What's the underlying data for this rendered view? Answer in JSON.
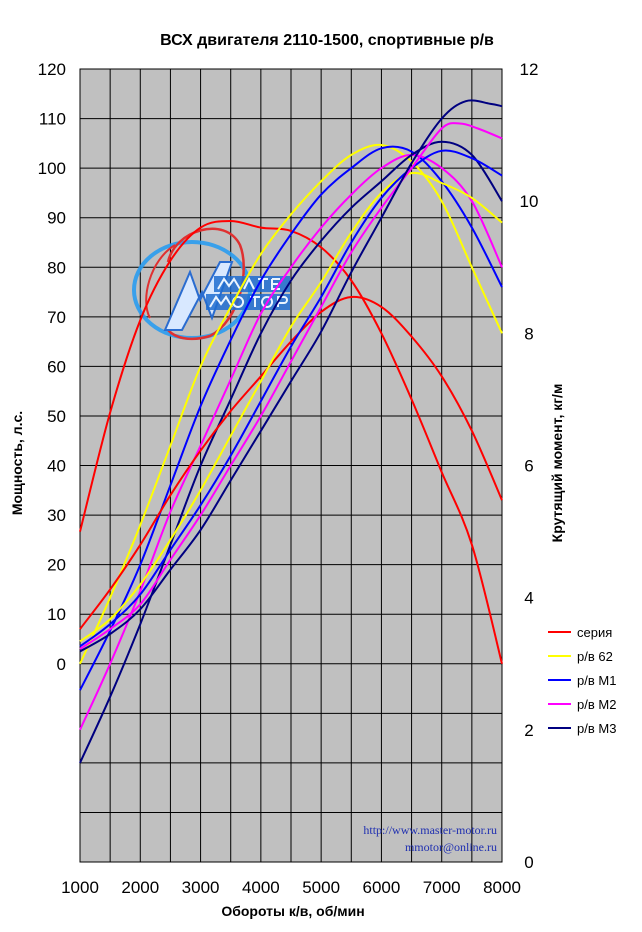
{
  "chart_data": {
    "type": "line",
    "title": "ВСХ двигателя 2110-1500, спортивные р/в",
    "xlabel": "Обороты к/в, об/мин",
    "ylabel_left": "Мощность, л.с.",
    "ylabel_right": "Крутящий момент, кг/м",
    "xlim": [
      1000,
      8000
    ],
    "ylim_left": [
      -40,
      120
    ],
    "ylim_right": [
      0,
      12
    ],
    "x_ticks": [
      1000,
      2000,
      3000,
      4000,
      5000,
      6000,
      7000,
      8000
    ],
    "y_ticks_left": [
      0,
      10,
      20,
      30,
      40,
      50,
      60,
      70,
      80,
      90,
      100,
      110,
      120
    ],
    "y_ticks_right": [
      0,
      2,
      4,
      6,
      8,
      10,
      12
    ],
    "grid": true,
    "legend_position": "right",
    "series": [
      {
        "name": "серия",
        "color": "#ff0000",
        "power": [
          [
            1000,
            7
          ],
          [
            1500,
            15
          ],
          [
            2000,
            24
          ],
          [
            2500,
            34
          ],
          [
            3000,
            43
          ],
          [
            3500,
            51
          ],
          [
            4000,
            58
          ],
          [
            4500,
            65
          ],
          [
            5000,
            71
          ],
          [
            5500,
            74
          ],
          [
            6000,
            72
          ],
          [
            6500,
            66
          ],
          [
            7000,
            58
          ],
          [
            7500,
            47
          ],
          [
            8000,
            33
          ]
        ],
        "torque": [
          [
            1000,
            5.0
          ],
          [
            1500,
            6.8
          ],
          [
            2000,
            8.2
          ],
          [
            2500,
            9.1
          ],
          [
            3000,
            9.6
          ],
          [
            3500,
            9.7
          ],
          [
            4000,
            9.6
          ],
          [
            4500,
            9.55
          ],
          [
            5000,
            9.3
          ],
          [
            5500,
            8.8
          ],
          [
            6000,
            8.0
          ],
          [
            6500,
            7.0
          ],
          [
            7000,
            5.9
          ],
          [
            7500,
            4.8
          ],
          [
            8000,
            3.0
          ]
        ]
      },
      {
        "name": "р/в 62",
        "color": "#ffff00",
        "power": [
          [
            1000,
            4.5
          ],
          [
            1500,
            9
          ],
          [
            2000,
            16
          ],
          [
            2500,
            25
          ],
          [
            3000,
            35
          ],
          [
            3500,
            46
          ],
          [
            4000,
            57
          ],
          [
            4500,
            68
          ],
          [
            5000,
            77
          ],
          [
            5500,
            87
          ],
          [
            6000,
            95
          ],
          [
            6500,
            99
          ],
          [
            7000,
            97
          ],
          [
            7500,
            94
          ],
          [
            8000,
            89
          ]
        ],
        "torque": [
          [
            1000,
            3.0
          ],
          [
            1500,
            4.0
          ],
          [
            2000,
            5.1
          ],
          [
            2500,
            6.3
          ],
          [
            3000,
            7.5
          ],
          [
            3500,
            8.4
          ],
          [
            4000,
            9.2
          ],
          [
            4500,
            9.8
          ],
          [
            5000,
            10.3
          ],
          [
            5500,
            10.7
          ],
          [
            6000,
            10.85
          ],
          [
            6500,
            10.6
          ],
          [
            7000,
            10.0
          ],
          [
            7500,
            9.0
          ],
          [
            8000,
            8.0
          ]
        ]
      },
      {
        "name": "р/в М1",
        "color": "#0000ff",
        "power": [
          [
            1000,
            3.5
          ],
          [
            1500,
            8
          ],
          [
            2000,
            14
          ],
          [
            2500,
            23
          ],
          [
            3000,
            32
          ],
          [
            3500,
            42
          ],
          [
            4000,
            53
          ],
          [
            4500,
            64
          ],
          [
            5000,
            74
          ],
          [
            5500,
            85
          ],
          [
            6000,
            94
          ],
          [
            6500,
            100
          ],
          [
            7000,
            103.5
          ],
          [
            7500,
            102
          ],
          [
            8000,
            98.5
          ]
        ],
        "torque": [
          [
            1000,
            2.6
          ],
          [
            1500,
            3.5
          ],
          [
            2000,
            4.5
          ],
          [
            2500,
            5.7
          ],
          [
            3000,
            6.9
          ],
          [
            3500,
            7.9
          ],
          [
            4000,
            8.8
          ],
          [
            4500,
            9.5
          ],
          [
            5000,
            10.1
          ],
          [
            5500,
            10.5
          ],
          [
            6000,
            10.8
          ],
          [
            6500,
            10.75
          ],
          [
            7000,
            10.3
          ],
          [
            7500,
            9.6
          ],
          [
            8000,
            8.7
          ]
        ]
      },
      {
        "name": "р/в М2",
        "color": "#ff00ff",
        "power": [
          [
            1000,
            3
          ],
          [
            1500,
            7
          ],
          [
            2000,
            12
          ],
          [
            2500,
            21
          ],
          [
            3000,
            30
          ],
          [
            3500,
            40
          ],
          [
            4000,
            50
          ],
          [
            4500,
            61
          ],
          [
            5000,
            72
          ],
          [
            5500,
            83
          ],
          [
            6000,
            92
          ],
          [
            6500,
            100
          ],
          [
            7000,
            108
          ],
          [
            7300,
            109
          ],
          [
            7600,
            108
          ],
          [
            8000,
            106
          ]
        ],
        "torque": [
          [
            1000,
            2.0
          ],
          [
            1500,
            3.0
          ],
          [
            2000,
            4.1
          ],
          [
            2500,
            5.3
          ],
          [
            3000,
            6.3
          ],
          [
            3500,
            7.3
          ],
          [
            4000,
            8.3
          ],
          [
            4500,
            9.0
          ],
          [
            5000,
            9.6
          ],
          [
            5500,
            10.1
          ],
          [
            6000,
            10.5
          ],
          [
            6500,
            10.7
          ],
          [
            7000,
            10.5
          ],
          [
            7500,
            10.0
          ],
          [
            8000,
            9.0
          ]
        ]
      },
      {
        "name": "р/в М3",
        "color": "#000080",
        "power": [
          [
            1000,
            2.5
          ],
          [
            1500,
            6
          ],
          [
            2000,
            11
          ],
          [
            2500,
            19
          ],
          [
            3000,
            27
          ],
          [
            3500,
            37
          ],
          [
            4000,
            47
          ],
          [
            4500,
            57
          ],
          [
            5000,
            67
          ],
          [
            5500,
            79
          ],
          [
            6000,
            90
          ],
          [
            6500,
            101
          ],
          [
            7000,
            110
          ],
          [
            7400,
            113.5
          ],
          [
            7800,
            113
          ],
          [
            8000,
            112.5
          ]
        ],
        "torque": [
          [
            1000,
            1.5
          ],
          [
            1500,
            2.5
          ],
          [
            2000,
            3.6
          ],
          [
            2500,
            4.8
          ],
          [
            3000,
            6.0
          ],
          [
            3500,
            7.0
          ],
          [
            4000,
            8.0
          ],
          [
            4500,
            8.8
          ],
          [
            5000,
            9.4
          ],
          [
            5500,
            9.9
          ],
          [
            6000,
            10.3
          ],
          [
            6500,
            10.7
          ],
          [
            7000,
            10.9
          ],
          [
            7500,
            10.7
          ],
          [
            8000,
            10.0
          ]
        ]
      }
    ]
  },
  "watermark": {
    "url": "http://www.master-motor.ru",
    "email": "mmotor@online.ru"
  }
}
